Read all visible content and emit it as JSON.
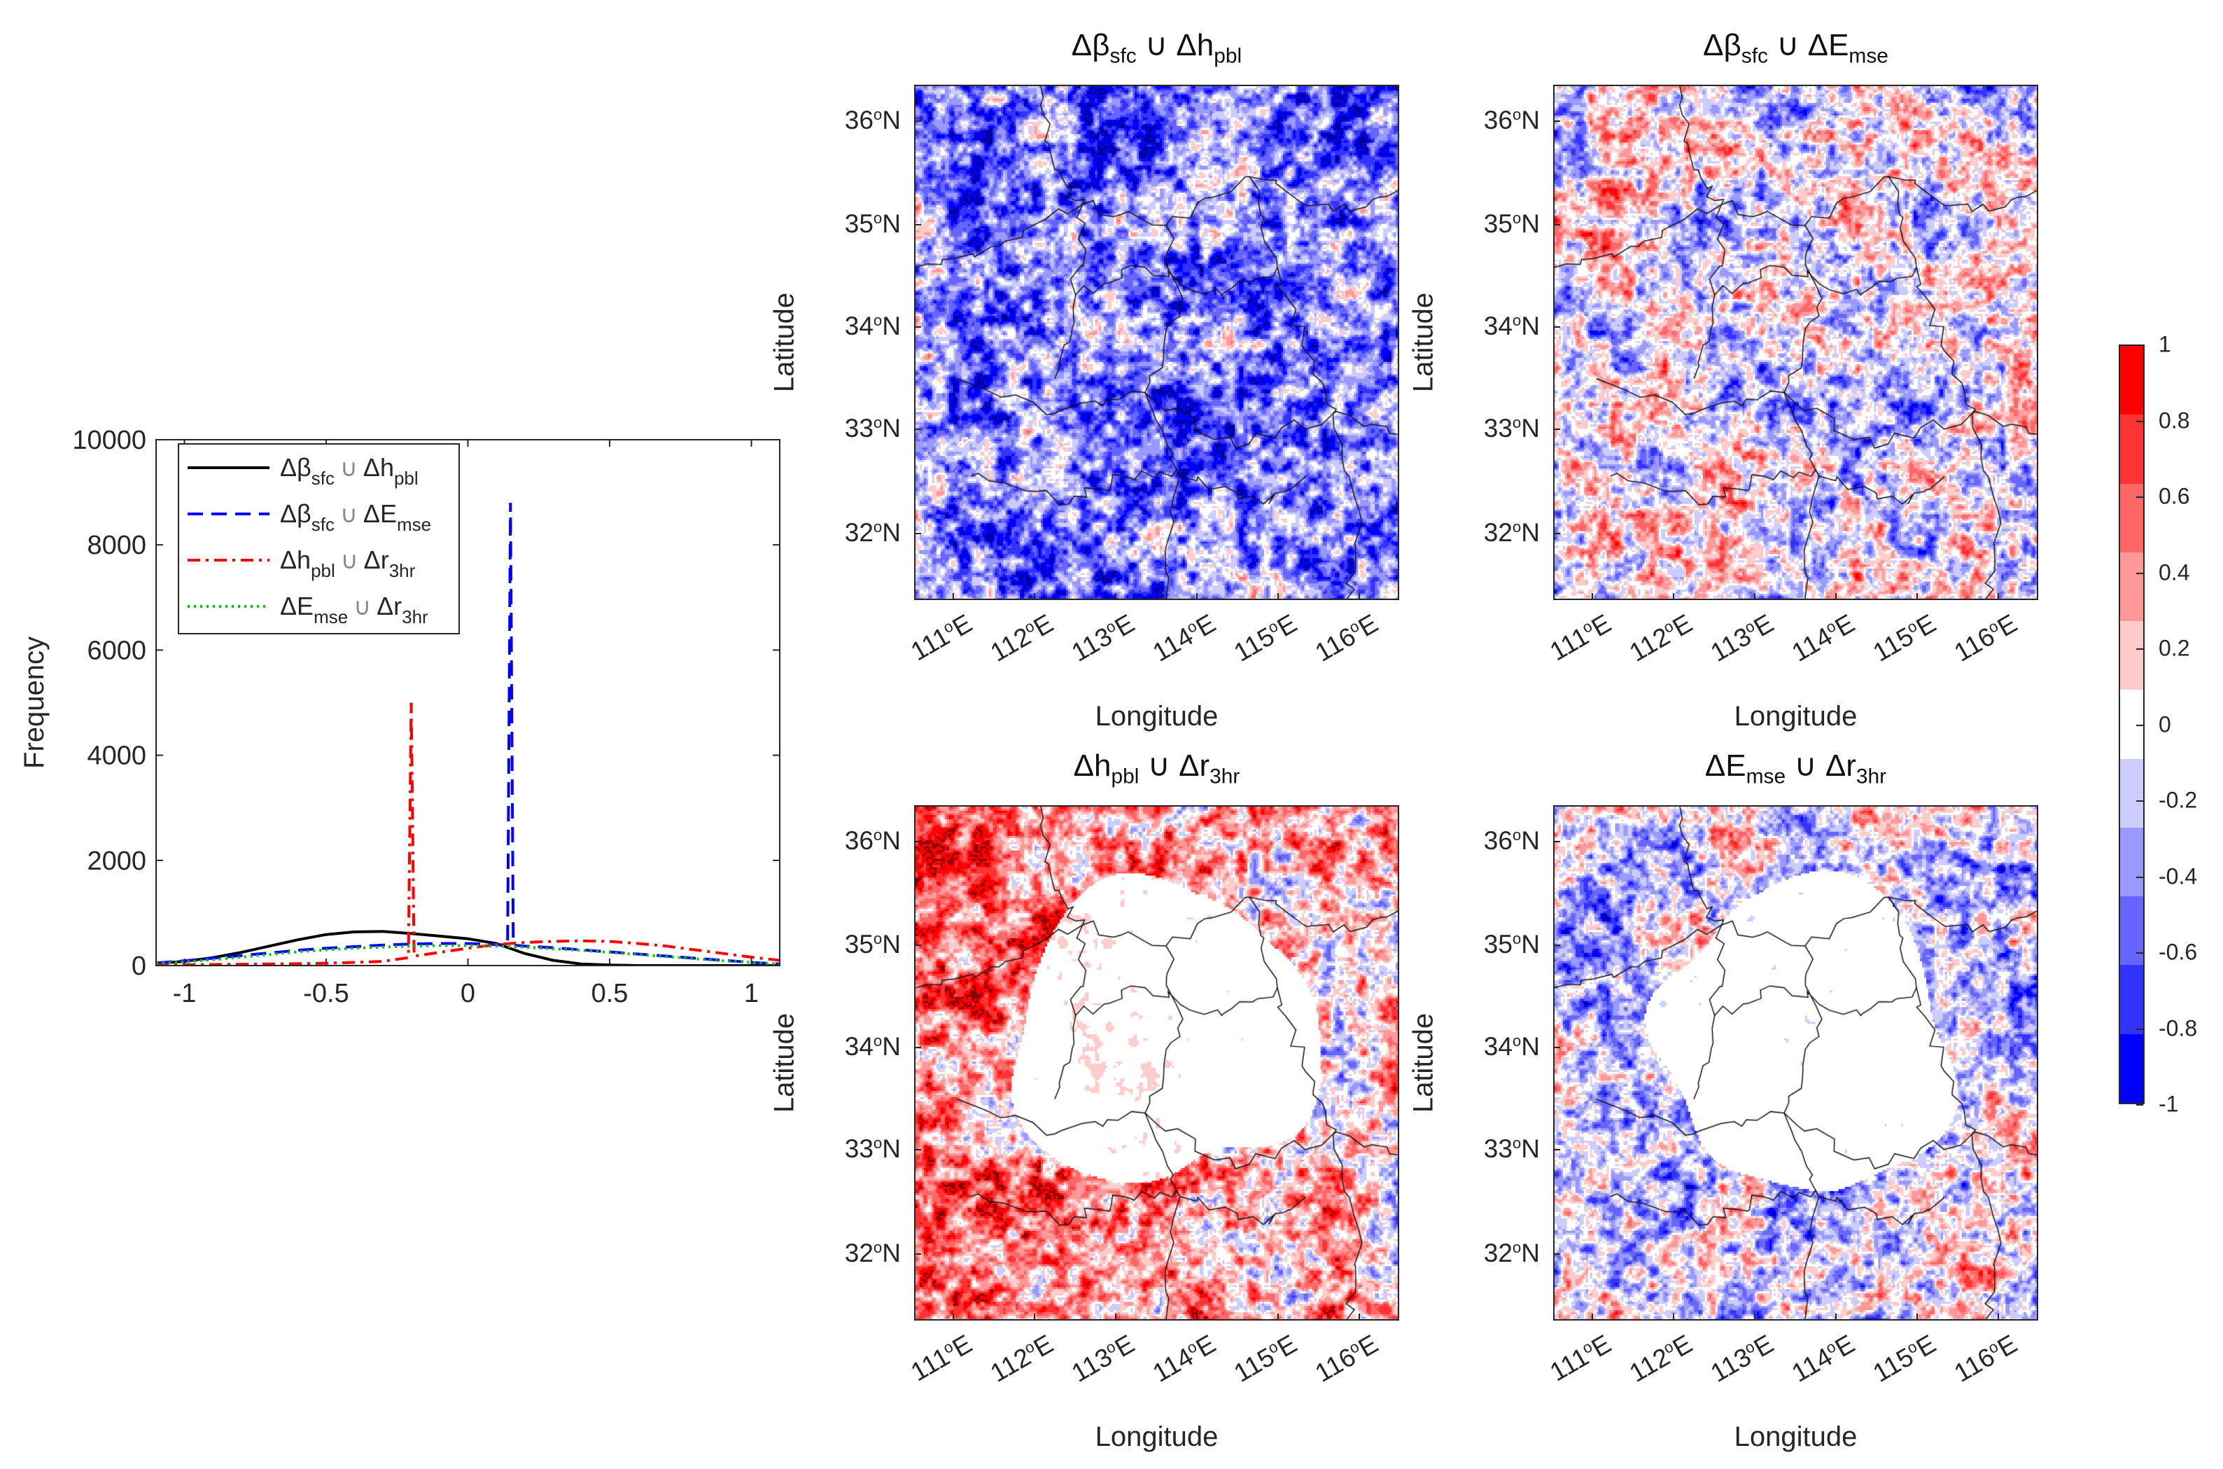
{
  "chart_data": [
    {
      "type": "line",
      "title": "",
      "xlabel": "",
      "ylabel": "Frequency",
      "xlim": [
        -1.1,
        1.1
      ],
      "ylim": [
        0,
        10000
      ],
      "xticks": [
        "-1",
        "-0.5",
        "0",
        "0.5",
        "1"
      ],
      "xtick_values": [
        -1,
        -0.5,
        0,
        0.5,
        1
      ],
      "yticks": [
        "0",
        "2000",
        "4000",
        "6000",
        "8000",
        "10000"
      ],
      "ytick_values": [
        0,
        2000,
        4000,
        6000,
        8000,
        10000
      ],
      "legend_position": "top-left",
      "series": [
        {
          "name": "Δβsfc ∪ Δhpbl",
          "label": {
            "a": "Δβ",
            "as": "sfc",
            "b": "Δh",
            "bs": "pbl"
          },
          "color": "#000000",
          "dash": "solid",
          "x": [
            -1.1,
            -1.0,
            -0.9,
            -0.8,
            -0.7,
            -0.6,
            -0.5,
            -0.4,
            -0.3,
            -0.2,
            -0.1,
            0,
            0.1,
            0.2,
            0.3,
            0.4,
            0.5,
            0.6,
            0.7,
            0.8,
            0.9,
            1.0,
            1.1
          ],
          "y": [
            40,
            80,
            150,
            250,
            370,
            490,
            590,
            640,
            650,
            610,
            560,
            510,
            420,
            230,
            100,
            30,
            10,
            0,
            0,
            0,
            0,
            0,
            0
          ]
        },
        {
          "name": "Δβsfc ∪ ΔEmse",
          "label": {
            "a": "Δβ",
            "as": "sfc",
            "b": "ΔE",
            "bs": "mse"
          },
          "color": "#0000ff",
          "dash": "dashed",
          "x": [
            -1.1,
            -1.0,
            -0.9,
            -0.8,
            -0.7,
            -0.6,
            -0.5,
            -0.4,
            -0.3,
            -0.2,
            -0.1,
            0,
            0.1,
            0.14,
            0.15,
            0.16,
            0.2,
            0.3,
            0.4,
            0.5,
            0.6,
            0.7,
            0.8,
            0.9,
            1.0,
            1.1
          ],
          "y": [
            50,
            90,
            140,
            190,
            240,
            290,
            330,
            360,
            390,
            410,
            420,
            420,
            400,
            390,
            8800,
            390,
            370,
            340,
            300,
            260,
            220,
            180,
            140,
            100,
            60,
            30
          ]
        },
        {
          "name": "Δhpbl ∪ Δr3hr",
          "label": {
            "a": "Δh",
            "as": "pbl",
            "b": "Δr",
            "bs": "3hr"
          },
          "color": "#ff0000",
          "dash": "dashdot",
          "x": [
            -1.1,
            -1.0,
            -0.9,
            -0.8,
            -0.7,
            -0.6,
            -0.5,
            -0.4,
            -0.3,
            -0.21,
            -0.2,
            -0.19,
            -0.1,
            0,
            0.1,
            0.2,
            0.3,
            0.4,
            0.5,
            0.6,
            0.7,
            0.8,
            0.9,
            1.0,
            1.1
          ],
          "y": [
            10,
            15,
            20,
            25,
            30,
            35,
            45,
            60,
            80,
            150,
            5000,
            180,
            250,
            330,
            400,
            440,
            460,
            470,
            460,
            420,
            370,
            300,
            230,
            160,
            100
          ]
        },
        {
          "name": "ΔEmse ∪ Δr3hr",
          "label": {
            "a": "ΔE",
            "as": "mse",
            "b": "Δr",
            "bs": "3hr"
          },
          "color": "#00cc00",
          "dash": "dotted",
          "x": [
            -1.1,
            -1.0,
            -0.9,
            -0.8,
            -0.7,
            -0.6,
            -0.5,
            -0.4,
            -0.3,
            -0.2,
            -0.1,
            0,
            0.1,
            0.2,
            0.3,
            0.4,
            0.5,
            0.6,
            0.7,
            0.8,
            0.9,
            1.0,
            1.1
          ],
          "y": [
            40,
            70,
            110,
            160,
            210,
            260,
            300,
            330,
            350,
            370,
            380,
            380,
            370,
            350,
            320,
            290,
            250,
            210,
            170,
            130,
            90,
            60,
            30
          ]
        }
      ]
    },
    {
      "type": "heatmap",
      "panels": [
        {
          "title": {
            "a": "Δβ",
            "as": "sfc",
            "b": "Δh",
            "bs": "pbl"
          },
          "mean_correlation": -0.45
        },
        {
          "title": {
            "a": "Δβ",
            "as": "sfc",
            "b": "ΔE",
            "bs": "mse"
          },
          "mean_correlation": -0.05
        },
        {
          "title": {
            "a": "Δh",
            "as": "pbl",
            "b": "Δr",
            "bs": "3hr"
          },
          "mean_correlation": 0.35
        },
        {
          "title": {
            "a": "ΔE",
            "as": "mse",
            "b": "Δr",
            "bs": "3hr"
          },
          "mean_correlation": -0.1
        }
      ],
      "union_symbol": "∪",
      "xlabel": "Longitude",
      "ylabel": "Latitude",
      "lat_ticks": [
        "36",
        "35",
        "34",
        "33",
        "32"
      ],
      "lon_ticks": [
        "111",
        "112",
        "113",
        "114",
        "115",
        "116"
      ],
      "degree_symbol": "o",
      "lat_hemisphere": "N",
      "lon_hemisphere": "E",
      "colorbar": {
        "range": [
          -1,
          1
        ],
        "ticks": [
          "1",
          "0.8",
          "0.6",
          "0.4",
          "0.2",
          "0",
          "-0.2",
          "-0.4",
          "-0.6",
          "-0.8",
          "-1"
        ],
        "colors": [
          "#ff0000",
          "#ff3333",
          "#ff6666",
          "#ff9999",
          "#ffcccc",
          "#ffffff",
          "#ccccff",
          "#9999ff",
          "#6666ff",
          "#3333ff",
          "#0000ff"
        ]
      }
    }
  ]
}
